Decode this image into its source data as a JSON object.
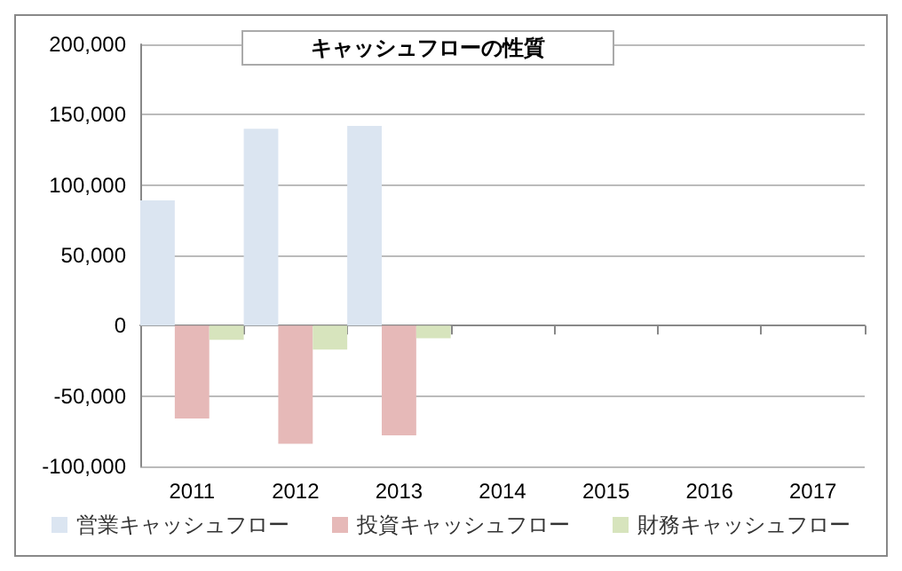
{
  "chart_data": {
    "type": "bar",
    "title": "キャッシュフローの性質",
    "categories": [
      "2011",
      "2012",
      "2013",
      "2014",
      "2015",
      "2016",
      "2017"
    ],
    "series": [
      {
        "name": "営業キャッシュフロー",
        "color": "#dbe5f1",
        "values": [
          89000,
          140000,
          142000,
          null,
          null,
          null,
          null
        ]
      },
      {
        "name": "投資キャッシュフロー",
        "color": "#e6b9b8",
        "values": [
          -66000,
          -84000,
          -78000,
          null,
          null,
          null,
          null
        ]
      },
      {
        "name": "財務キャッシュフロー",
        "color": "#d7e4bd",
        "values": [
          -10000,
          -17000,
          -9000,
          null,
          null,
          null,
          null
        ]
      }
    ],
    "ylim": [
      -100000,
      200000
    ],
    "yticks": [
      {
        "value": -100000,
        "label": "-100,000"
      },
      {
        "value": -50000,
        "label": "-50,000"
      },
      0,
      {
        "value": 50000,
        "label": "50,000"
      },
      {
        "value": 100000,
        "label": "100,000"
      },
      {
        "value": 150000,
        "label": "150,000"
      },
      {
        "value": 200000,
        "label": "200,000"
      }
    ],
    "grid": "y",
    "legend": "bottom"
  }
}
